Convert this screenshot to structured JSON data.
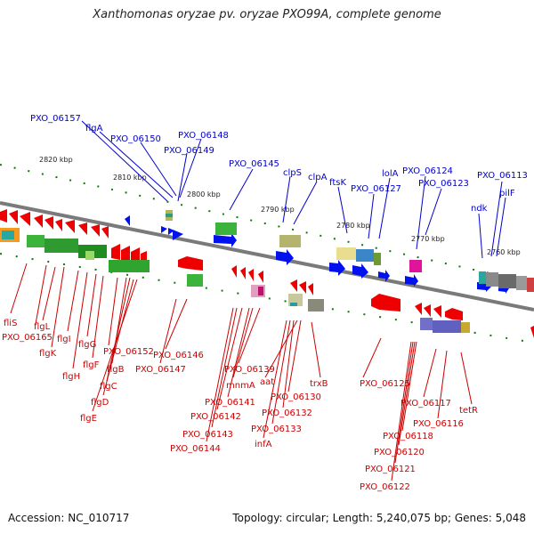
{
  "title": "Xanthomonas oryzae pv. oryzae PXO99A, complete genome",
  "footer": {
    "accession": "Accession: NC_010717",
    "topology": "Topology: circular; Length: 5,240,075 bp; Genes: 5,048"
  },
  "colors": {
    "plus_strand_label": "#0000cc",
    "minus_strand_label": "#cc0000",
    "plus_strand_gene": "#0011ee",
    "minus_strand_gene": "#ee0000",
    "backbone": "#7a7a7a",
    "tick": "#117711"
  },
  "scale_ticks": [
    "2820 kbp",
    "2810 kbp",
    "2800 kbp",
    "2790 kbp",
    "2780 kbp",
    "2770 kbp",
    "2760 kbp"
  ],
  "plus_labels": [
    "PXO_06157",
    "flgA",
    "PXO_06150",
    "PXO_06148",
    "PXO_06149",
    "PXO_06145",
    "clpS",
    "clpA",
    "ftsK",
    "PXO_06127",
    "lolA",
    "PXO_06124",
    "PXO_06123",
    "ndk",
    "PXO_06113",
    "pilF"
  ],
  "minus_labels": [
    "fliS",
    "PXO_06165",
    "flgL",
    "flgK",
    "flgI",
    "flgH",
    "flgG",
    "flgF",
    "PXO_06152",
    "flgB",
    "flgC",
    "flgD",
    "flgE",
    "PXO_06146",
    "PXO_06147",
    "PXO_06139",
    "mnmA",
    "PXO_06141",
    "PXO_06142",
    "PXO_06143",
    "PXO_06144",
    "aat",
    "PXO_06130",
    "PXO_06132",
    "PXO_06133",
    "infA",
    "trxB",
    "PXO_06125",
    "PXO_06117",
    "PXO_06116",
    "tetR",
    "PXO_06118",
    "PXO_06120",
    "PXO_06121",
    "PXO_06122"
  ]
}
